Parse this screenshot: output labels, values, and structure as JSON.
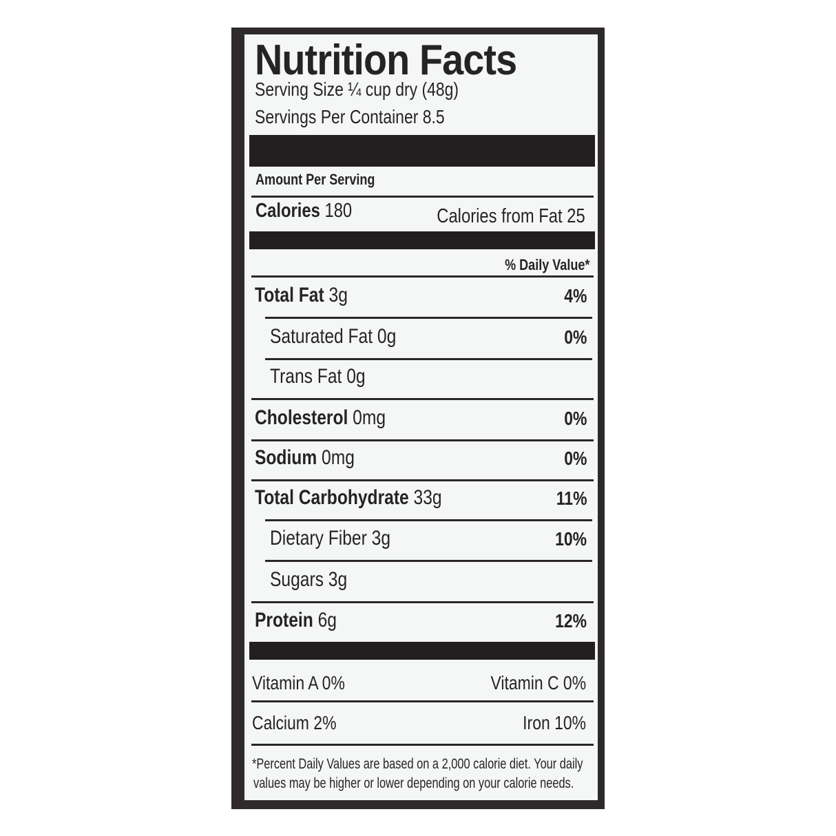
{
  "title": "Nutrition Facts",
  "serving_size": "Serving Size ¼ cup dry (48g)",
  "servings_per_container": "Servings Per Container  8.5",
  "amount_per_serving": "Amount Per Serving",
  "calories": {
    "label": "Calories",
    "value": "180",
    "from_fat": "Calories from Fat 25"
  },
  "daily_value_header": "% Daily Value*",
  "nutrients": [
    {
      "label": "Total Fat",
      "amount": "3g",
      "dv": "4%",
      "bold": true
    },
    {
      "label": "Saturated Fat",
      "amount": "0g",
      "dv": "0%",
      "bold": false
    },
    {
      "label": "Trans Fat",
      "amount": "0g",
      "dv": "",
      "bold": false
    },
    {
      "label": "Cholesterol",
      "amount": "0mg",
      "dv": "0%",
      "bold": true
    },
    {
      "label": "Sodium",
      "amount": "0mg",
      "dv": "0%",
      "bold": true
    },
    {
      "label": "Total Carbohydrate",
      "amount": "33g",
      "dv": "11%",
      "bold": true
    },
    {
      "label": "Dietary Fiber",
      "amount": "3g",
      "dv": "10%",
      "bold": false
    },
    {
      "label": "Sugars",
      "amount": "3g",
      "dv": "",
      "bold": false
    },
    {
      "label": "Protein",
      "amount": "6g",
      "dv": "12%",
      "bold": true
    }
  ],
  "vitamins": [
    {
      "left": "Vitamin A  0%",
      "right": "Vitamin C  0%"
    },
    {
      "left": "Calcium  2%",
      "right": "Iron  10%"
    }
  ],
  "footnote": [
    "*Percent Daily Values are based on a 2,000 calorie diet. Your daily",
    "values may be higher or lower depending on your calorie needs."
  ]
}
